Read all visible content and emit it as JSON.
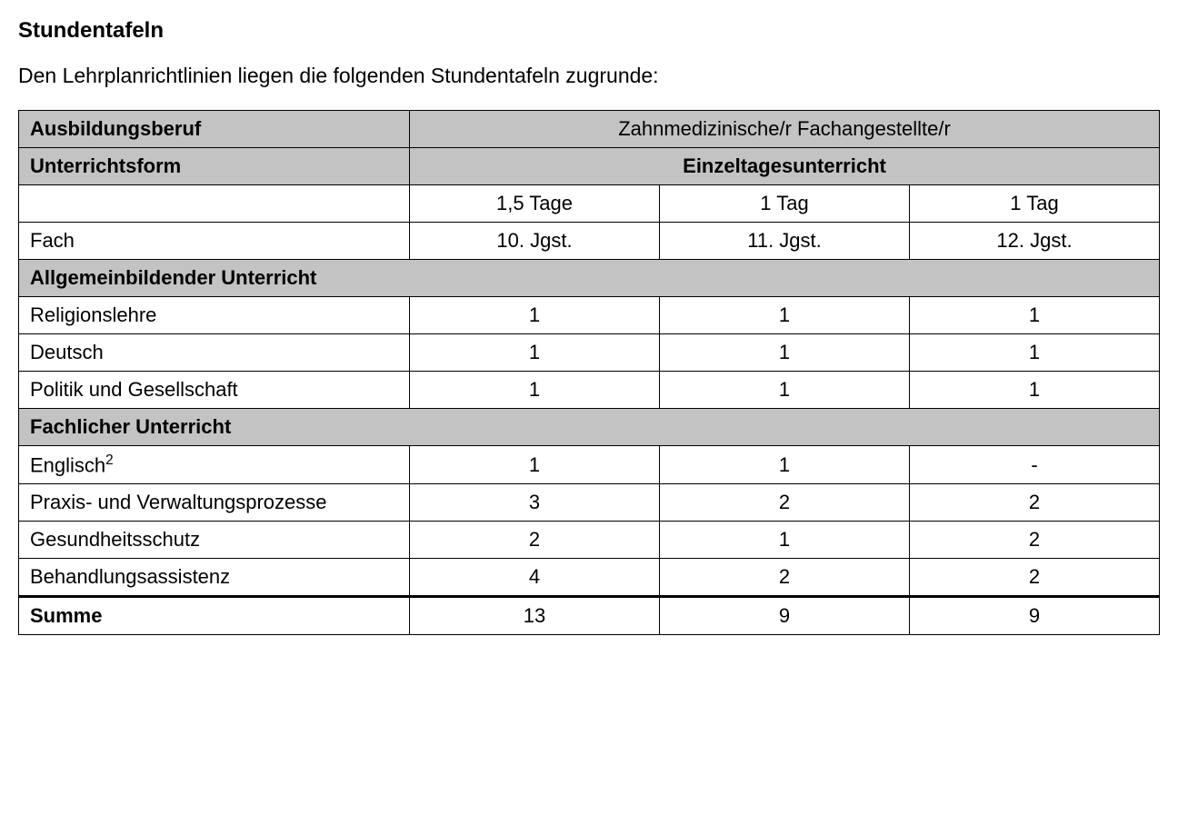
{
  "title": "Stundentafeln",
  "intro": "Den Lehrplanrichtlinien liegen die folgenden Stundentafeln zugrunde:",
  "table": {
    "header_bg": "#c3c3c3",
    "border_color": "#000000",
    "font_family": "Arial",
    "base_fontsize_pt": 16,
    "ausbildungsberuf_label": "Ausbildungsberuf",
    "ausbildungsberuf_value": "Zahnmedizinische/r Fachangestellte/r",
    "unterrichtsform_label": "Unterrichtsform",
    "unterrichtsform_value": "Einzeltagesunterricht",
    "days_row": [
      "1,5 Tage",
      "1 Tag",
      "1 Tag"
    ],
    "fach_label": "Fach",
    "grade_row": [
      "10. Jgst.",
      "11. Jgst.",
      "12. Jgst."
    ],
    "sections": [
      {
        "title": "Allgemeinbildender Unterricht",
        "rows": [
          {
            "label": "Religionslehre",
            "values": [
              "1",
              "1",
              "1"
            ]
          },
          {
            "label": "Deutsch",
            "values": [
              "1",
              "1",
              "1"
            ]
          },
          {
            "label": "Politik und Gesellschaft",
            "values": [
              "1",
              "1",
              "1"
            ]
          }
        ]
      },
      {
        "title": "Fachlicher Unterricht",
        "rows": [
          {
            "label": "Englisch",
            "sup": "2",
            "values": [
              "1",
              "1",
              "-"
            ]
          },
          {
            "label": "Praxis- und Verwaltungsprozesse",
            "values": [
              "3",
              "2",
              "2"
            ]
          },
          {
            "label": "Gesundheitsschutz",
            "values": [
              "2",
              "1",
              "2"
            ]
          },
          {
            "label": "Behandlungsassistenz",
            "values": [
              "4",
              "2",
              "2"
            ]
          }
        ]
      }
    ],
    "sum_label": "Summe",
    "sum_values": [
      "13",
      "9",
      "9"
    ]
  }
}
